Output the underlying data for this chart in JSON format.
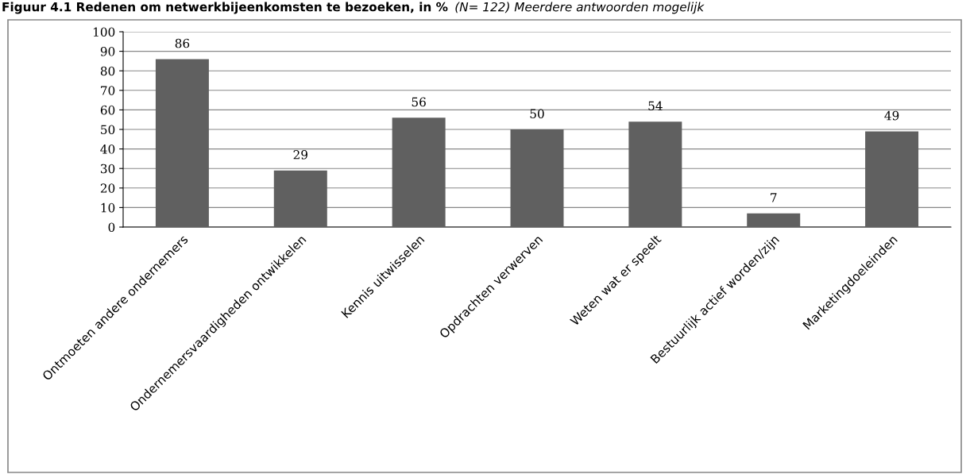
{
  "chart_data": {
    "type": "bar",
    "title": "Figuur 4.1 Redenen om netwerkbijeenkomsten te bezoeken, in %",
    "subtitle": "(N= 122) Meerdere antwoorden mogelijk",
    "categories": [
      "Ontmoeten andere ondernemers",
      "Ondernemersvaardigheden ontwikkelen",
      "Kennis uitwisselen",
      "Opdrachten verwerven",
      "Weten wat er speelt",
      "Bestuurlijk actief worden/zijn",
      "Marketingdoeleinden"
    ],
    "values": [
      86,
      29,
      56,
      50,
      54,
      7,
      49
    ],
    "color": "#606060",
    "ylim": [
      0,
      100
    ],
    "yticks": [
      0,
      10,
      20,
      30,
      40,
      50,
      60,
      70,
      80,
      90,
      100
    ],
    "grid": "y",
    "data_labels": true
  }
}
